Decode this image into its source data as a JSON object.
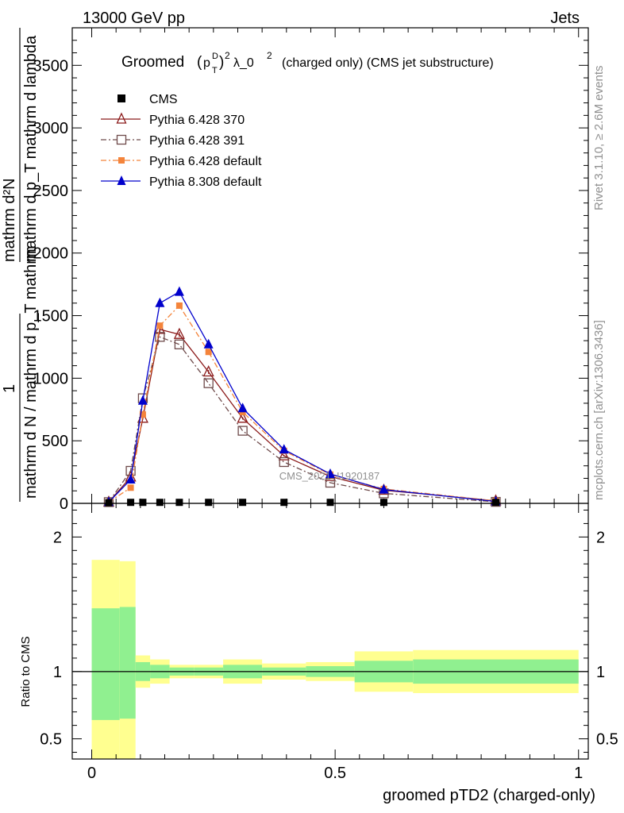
{
  "header": {
    "energy": "13000 GeV pp",
    "category": "Jets"
  },
  "side_text": {
    "rivet": "Rivet 3.1.10, ≥ 2.6M events",
    "site": "mcplots.cern.ch [arXiv:1306.3436]"
  },
  "chart_data": [
    {
      "type": "line",
      "title": {
        "prefix": "Groomed",
        "p": "p",
        "p_sup": "D",
        "p_sub": "T",
        "sq": "2",
        "lam": "λ_0",
        "lam_sup": "2",
        "suffix": "(charged only) (CMS jet substructure)"
      },
      "ylabel": {
        "num": "mathrm d²N",
        "num2": "mathrm d p_T mathrm d lambda",
        "frac_one": "1",
        "den": "mathrm d N / mathrm d p_T mathrm"
      },
      "xlim": [
        -0.04,
        1.02
      ],
      "ylim": [
        0,
        3800
      ],
      "yticks": [
        0,
        500,
        1000,
        1500,
        2000,
        2500,
        3000,
        3500
      ],
      "ytick_labels": [
        "0",
        "500",
        "1000",
        "1500",
        "2000",
        "2500",
        "3000",
        "3500"
      ],
      "watermark": "CMS_2021_I1920187",
      "legend": [
        "CMS",
        "Pythia 6.428 370",
        "Pythia 6.428 391",
        "Pythia 6.428 default",
        "Pythia 8.308 default"
      ],
      "series": [
        {
          "name": "CMS",
          "color": "#000000",
          "x": [
            0.035,
            0.08,
            0.105,
            0.14,
            0.18,
            0.24,
            0.31,
            0.395,
            0.49,
            0.6,
            0.83
          ],
          "y": [
            5,
            8,
            8,
            8,
            8,
            8,
            8,
            8,
            8,
            8,
            8
          ]
        },
        {
          "name": "Pythia 6.428 370",
          "color": "#8b1a1a",
          "x": [
            0.035,
            0.08,
            0.105,
            0.14,
            0.18,
            0.24,
            0.31,
            0.395,
            0.49,
            0.6,
            0.83
          ],
          "y": [
            10,
            210,
            680,
            1390,
            1350,
            1050,
            680,
            380,
            215,
            105,
            20
          ]
        },
        {
          "name": "Pythia 6.428 391",
          "color": "#6e4a4a",
          "x": [
            0.035,
            0.08,
            0.105,
            0.14,
            0.18,
            0.24,
            0.31,
            0.395,
            0.49,
            0.6,
            0.83
          ],
          "y": [
            10,
            260,
            840,
            1330,
            1270,
            960,
            580,
            330,
            165,
            80,
            12
          ]
        },
        {
          "name": "Pythia 6.428 default",
          "color": "#f4843b",
          "x": [
            0.035,
            0.08,
            0.105,
            0.14,
            0.18,
            0.24,
            0.31,
            0.395,
            0.49,
            0.6,
            0.83
          ],
          "y": [
            10,
            125,
            710,
            1420,
            1580,
            1210,
            730,
            420,
            230,
            115,
            20
          ]
        },
        {
          "name": "Pythia 8.308 default",
          "color": "#0000cc",
          "x": [
            0.035,
            0.08,
            0.105,
            0.14,
            0.18,
            0.24,
            0.31,
            0.395,
            0.49,
            0.6,
            0.83
          ],
          "y": [
            10,
            190,
            820,
            1600,
            1690,
            1270,
            760,
            430,
            235,
            110,
            15
          ]
        }
      ]
    },
    {
      "type": "area",
      "ylabel": "Ratio to CMS",
      "xlabel": "groomed pTD2 (charged-only)",
      "xlim": [
        -0.04,
        1.02
      ],
      "ylim": [
        0.35,
        2.25
      ],
      "xticks": [
        0,
        0.5,
        1
      ],
      "xtick_labels": [
        "0",
        "0.5",
        "1"
      ],
      "yticks": [
        0.5,
        1,
        2
      ],
      "ytick_labels": [
        "0.5",
        "1",
        "2"
      ],
      "bands": [
        {
          "x0": 0.0,
          "x1": 0.0575,
          "in": [
            0.64,
            1.47
          ],
          "out": [
            0.35,
            1.83
          ]
        },
        {
          "x0": 0.0575,
          "x1": 0.09,
          "in": [
            0.65,
            1.48
          ],
          "out": [
            0.35,
            1.82
          ]
        },
        {
          "x0": 0.09,
          "x1": 0.12,
          "in": [
            0.93,
            1.07
          ],
          "out": [
            0.88,
            1.12
          ]
        },
        {
          "x0": 0.12,
          "x1": 0.16,
          "in": [
            0.95,
            1.05
          ],
          "out": [
            0.91,
            1.09
          ]
        },
        {
          "x0": 0.16,
          "x1": 0.21,
          "in": [
            0.97,
            1.03
          ],
          "out": [
            0.95,
            1.05
          ]
        },
        {
          "x0": 0.21,
          "x1": 0.27,
          "in": [
            0.97,
            1.03
          ],
          "out": [
            0.95,
            1.05
          ]
        },
        {
          "x0": 0.27,
          "x1": 0.35,
          "in": [
            0.95,
            1.05
          ],
          "out": [
            0.91,
            1.09
          ]
        },
        {
          "x0": 0.35,
          "x1": 0.44,
          "in": [
            0.97,
            1.03
          ],
          "out": [
            0.94,
            1.06
          ]
        },
        {
          "x0": 0.44,
          "x1": 0.54,
          "in": [
            0.96,
            1.04
          ],
          "out": [
            0.93,
            1.07
          ]
        },
        {
          "x0": 0.54,
          "x1": 0.66,
          "in": [
            0.92,
            1.08
          ],
          "out": [
            0.85,
            1.15
          ]
        },
        {
          "x0": 0.66,
          "x1": 1.0,
          "in": [
            0.91,
            1.09
          ],
          "out": [
            0.84,
            1.16
          ]
        }
      ],
      "band_colors": {
        "inner": "#90f090",
        "outer": "#ffff90"
      }
    }
  ]
}
